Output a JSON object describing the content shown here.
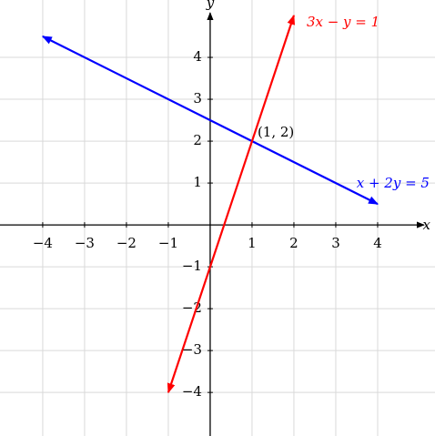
{
  "chart_data": {
    "type": "line",
    "x_label": "x",
    "y_label": "y",
    "xlim": [
      -5.02,
      5.37
    ],
    "ylim": [
      -5.04,
      5.37
    ],
    "xticks": [
      {
        "value": -4,
        "label": "−4"
      },
      {
        "value": -3,
        "label": "−3"
      },
      {
        "value": -2,
        "label": "−2"
      },
      {
        "value": -1,
        "label": "−1"
      },
      1,
      2,
      3,
      4
    ],
    "yticks": [
      {
        "value": -4,
        "label": "−4"
      },
      {
        "value": -3,
        "label": "−3"
      },
      {
        "value": -2,
        "label": "−2"
      },
      {
        "value": -1,
        "label": "−1"
      },
      1,
      2,
      3,
      4
    ],
    "grid": true,
    "series": [
      {
        "name": "x + 2y = 5",
        "color": "#0000ff",
        "x": [
          -4,
          4
        ],
        "values": [
          4.5,
          0.5
        ]
      },
      {
        "name": "3x − y = 1",
        "color": "#ff0000",
        "x": [
          -1,
          2
        ],
        "values": [
          -4,
          5
        ]
      }
    ],
    "annotations": [
      {
        "text": "(1, 2)",
        "x": 1,
        "y": 2
      }
    ]
  }
}
